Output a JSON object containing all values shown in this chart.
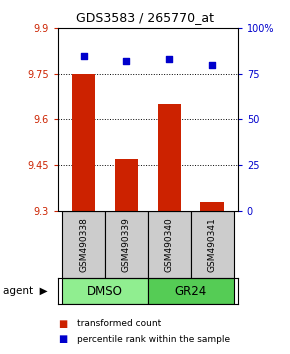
{
  "title": "GDS3583 / 265770_at",
  "samples": [
    "GSM490338",
    "GSM490339",
    "GSM490340",
    "GSM490341"
  ],
  "bar_values": [
    9.75,
    9.47,
    9.65,
    9.33
  ],
  "percentile_values": [
    85,
    82,
    83,
    80
  ],
  "groups": [
    {
      "label": "DMSO",
      "color": "#90ee90"
    },
    {
      "label": "GR24",
      "color": "#55cc55"
    }
  ],
  "bar_color": "#cc2200",
  "dot_color": "#0000cc",
  "ylim_left": [
    9.3,
    9.9
  ],
  "ylim_right": [
    0,
    100
  ],
  "yticks_left": [
    9.3,
    9.45,
    9.6,
    9.75,
    9.9
  ],
  "yticks_right": [
    0,
    25,
    50,
    75,
    100
  ],
  "ytick_labels_right": [
    "0",
    "25",
    "50",
    "75",
    "100%"
  ],
  "grid_lines": [
    9.45,
    9.6,
    9.75
  ],
  "plot_bg": "#ffffff",
  "agent_label": "agent",
  "legend_bar_label": "transformed count",
  "legend_dot_label": "percentile rank within the sample",
  "sample_box_color": "#cccccc",
  "bar_width": 0.55
}
